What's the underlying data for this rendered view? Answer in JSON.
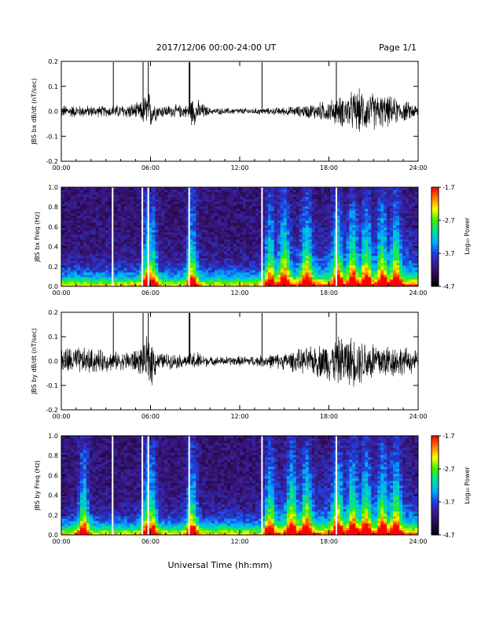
{
  "header": {
    "date_range": "2017/12/06  00:00-24:00 UT",
    "page": "Page 1/1"
  },
  "colors": {
    "trace": "#000000",
    "gap_marker": "#ffffff",
    "colormap": [
      "#000000",
      "#2a0a4a",
      "#3a1a8a",
      "#1f3fe0",
      "#00b0ff",
      "#00e0a0",
      "#40f000",
      "#ffff00",
      "#ff8000",
      "#ff0000"
    ]
  },
  "chart_data": [
    {
      "type": "line",
      "title": "",
      "ylabel": "JBS bx dB/dt (nT/sec)",
      "xlim": [
        0,
        24
      ],
      "ylim": [
        -0.2,
        0.2
      ],
      "x_ticks": [
        "00:00",
        "06:00",
        "12:00",
        "18:00",
        "24:00"
      ],
      "y_ticks": [
        "-0.2",
        "-0.1",
        "0.0",
        "0.1",
        "0.2"
      ],
      "spikes_hours": [
        3.5,
        5.5,
        5.85,
        8.6,
        8.65,
        13.5,
        18.5
      ],
      "amplitude_envelope": [
        {
          "hour": 0,
          "amp": 0.03
        },
        {
          "hour": 3,
          "amp": 0.025
        },
        {
          "hour": 5.3,
          "amp": 0.04
        },
        {
          "hour": 5.8,
          "amp": 0.1
        },
        {
          "hour": 6.5,
          "amp": 0.03
        },
        {
          "hour": 8.5,
          "amp": 0.03
        },
        {
          "hour": 8.8,
          "amp": 0.07
        },
        {
          "hour": 10,
          "amp": 0.015
        },
        {
          "hour": 14,
          "amp": 0.015
        },
        {
          "hour": 16,
          "amp": 0.025
        },
        {
          "hour": 18,
          "amp": 0.05
        },
        {
          "hour": 20,
          "amp": 0.1
        },
        {
          "hour": 22,
          "amp": 0.07
        },
        {
          "hour": 24,
          "amp": 0.03
        }
      ]
    },
    {
      "type": "heatmap",
      "title": "",
      "ylabel": "JBS bx Freq (Hz)",
      "colorbar_label": "Log₁₀ Power",
      "colorbar_ticks": [
        "-1.7",
        "-2.7",
        "-3.7",
        "-4.7"
      ],
      "colorbar_range": [
        -4.7,
        -1.7
      ],
      "xlim": [
        0,
        24
      ],
      "ylim": [
        0,
        1
      ],
      "x_ticks": [
        "00:00",
        "06:00",
        "12:00",
        "18:00",
        "24:00"
      ],
      "y_ticks": [
        "0.0",
        "0.2",
        "0.4",
        "0.6",
        "0.8",
        "1.0"
      ],
      "gap_hours": [
        3.45,
        5.45,
        5.85,
        8.6,
        13.5,
        18.5
      ],
      "activity_bursts_hours": [
        5.8,
        6.1,
        8.8,
        14,
        15,
        16.5,
        18.6,
        19.6,
        20.5,
        21.6,
        22.5
      ]
    },
    {
      "type": "line",
      "title": "",
      "ylabel": "JBS by dB/dt (nT/sec)",
      "xlim": [
        0,
        24
      ],
      "ylim": [
        -0.2,
        0.2
      ],
      "x_ticks": [
        "00:00",
        "06:00",
        "12:00",
        "18:00",
        "24:00"
      ],
      "y_ticks": [
        "-0.2",
        "-0.1",
        "0.0",
        "0.1",
        "0.2"
      ],
      "spikes_hours": [
        3.5,
        5.5,
        5.85,
        8.6,
        8.65,
        13.5,
        18.5
      ],
      "amplitude_envelope": [
        {
          "hour": 0,
          "amp": 0.07
        },
        {
          "hour": 2,
          "amp": 0.06
        },
        {
          "hour": 4,
          "amp": 0.04
        },
        {
          "hour": 5.6,
          "amp": 0.07
        },
        {
          "hour": 5.9,
          "amp": 0.15
        },
        {
          "hour": 6.5,
          "amp": 0.04
        },
        {
          "hour": 8.5,
          "amp": 0.03
        },
        {
          "hour": 9,
          "amp": 0.05
        },
        {
          "hour": 10,
          "amp": 0.02
        },
        {
          "hour": 13,
          "amp": 0.025
        },
        {
          "hour": 15,
          "amp": 0.04
        },
        {
          "hour": 17,
          "amp": 0.07
        },
        {
          "hour": 19,
          "amp": 0.12
        },
        {
          "hour": 21,
          "amp": 0.1
        },
        {
          "hour": 24,
          "amp": 0.05
        }
      ]
    },
    {
      "type": "heatmap",
      "title": "",
      "ylabel": "JBS by Freq (Hz)",
      "xlabel": "Universal Time (hh:mm)",
      "colorbar_label": "Log₁₀ Power",
      "colorbar_ticks": [
        "-1.7",
        "-2.7",
        "-3.7",
        "-4.7"
      ],
      "colorbar_range": [
        -4.7,
        -1.7
      ],
      "xlim": [
        0,
        24
      ],
      "ylim": [
        0,
        1
      ],
      "x_ticks": [
        "00:00",
        "06:00",
        "12:00",
        "18:00",
        "24:00"
      ],
      "y_ticks": [
        "0.0",
        "0.2",
        "0.4",
        "0.6",
        "0.8",
        "1.0"
      ],
      "gap_hours": [
        3.45,
        5.45,
        5.85,
        8.6,
        13.5,
        18.5
      ],
      "activity_bursts_hours": [
        1.5,
        5.8,
        6.1,
        8.8,
        14,
        15.5,
        16.5,
        18.6,
        19.6,
        20.5,
        21.6,
        22.5
      ]
    }
  ]
}
